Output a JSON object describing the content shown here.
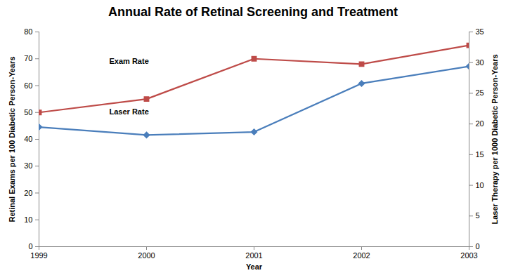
{
  "chart_data": {
    "type": "line",
    "title": "Annual Rate of Retinal Screening and Treatment",
    "x_label": "Year",
    "y_label": "Retinal Exams per 100 Diabetic Person-Years",
    "y2_label": "Laser Therapy per 1000 Diabetic Person-Years",
    "x": [
      1999,
      2000,
      2001,
      2002,
      2003
    ],
    "xlim": [
      1999,
      2003
    ],
    "xticks": [
      1999,
      2000,
      2001,
      2002,
      2003
    ],
    "ylim": [
      0,
      80
    ],
    "yticks": [
      0,
      10,
      20,
      30,
      40,
      50,
      60,
      70,
      80
    ],
    "y2lim": [
      0,
      35
    ],
    "y2ticks": [
      0,
      5,
      10,
      15,
      20,
      25,
      30,
      35
    ],
    "grid": false,
    "series": [
      {
        "name": "Exam Rate",
        "color": "#be4b48",
        "marker": "square",
        "values": [
          50,
          55,
          70,
          68,
          75
        ]
      },
      {
        "name": "Laser Rate",
        "color": "#4a7ebb",
        "marker": "diamond",
        "axis": "y2",
        "values": [
          19.5,
          18.2,
          18.7,
          26.6,
          29.4
        ]
      }
    ]
  }
}
